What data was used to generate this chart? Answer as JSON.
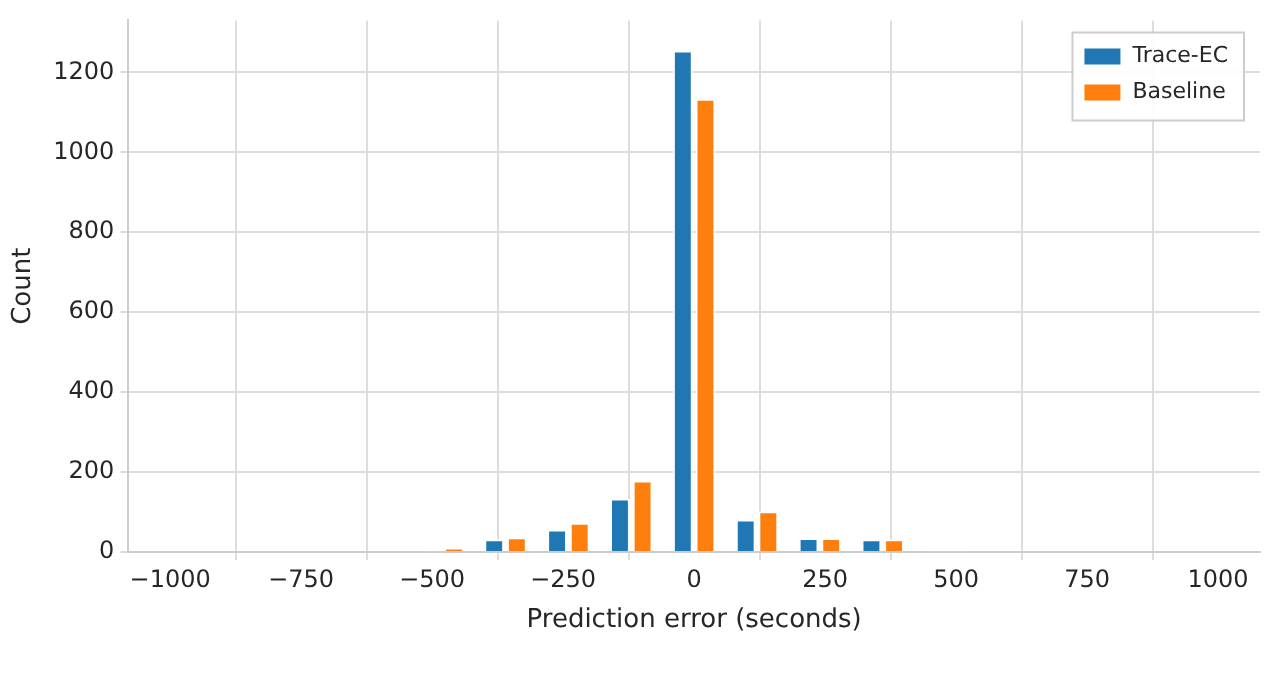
{
  "chart_data": {
    "type": "histogram",
    "xlabel": "Prediction error (seconds)",
    "ylabel": "Count",
    "bins": [
      -1020,
      -900,
      -780,
      -660,
      -540,
      -420,
      -300,
      -180,
      -60,
      60,
      180,
      300,
      420,
      540,
      660,
      780,
      900,
      1020
    ],
    "series": [
      {
        "name": "Trace-EC",
        "color": "#1f77b4",
        "values": [
          0,
          0,
          0,
          0,
          2,
          32,
          56,
          134,
          1255,
          81,
          35,
          32,
          2,
          0,
          0,
          0,
          0
        ]
      },
      {
        "name": "Baseline",
        "color": "#ff7f0e",
        "values": [
          0,
          0,
          0,
          0,
          10,
          37,
          73,
          179,
          1134,
          102,
          35,
          32,
          2,
          0,
          0,
          0,
          0
        ]
      }
    ],
    "xlim": [
      -1080,
      1080
    ],
    "xticks": [
      {
        "value": -1000,
        "label": "−1000"
      },
      {
        "value": -750,
        "label": "−750"
      },
      {
        "value": -500,
        "label": "−500"
      },
      {
        "value": -250,
        "label": "−250"
      },
      0,
      250,
      500,
      750,
      1000
    ],
    "ylim": [
      0,
      1330
    ],
    "yticks": [
      0,
      200,
      400,
      600,
      800,
      1000,
      1200
    ],
    "grid": true,
    "legend": "top right"
  }
}
